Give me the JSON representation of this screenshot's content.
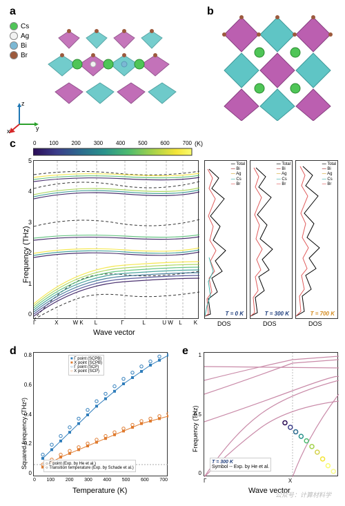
{
  "panels": {
    "a": {
      "label": "a"
    },
    "b": {
      "label": "b"
    },
    "c": {
      "label": "c"
    },
    "d": {
      "label": "d"
    },
    "e": {
      "label": "e"
    }
  },
  "atom_legend": {
    "items": [
      {
        "name": "Cs",
        "color": "#4fc557"
      },
      {
        "name": "Ag",
        "color": "#f2f2f2"
      },
      {
        "name": "Bi",
        "color": "#7bb8d4"
      },
      {
        "name": "Br",
        "color": "#9c5a3d"
      }
    ]
  },
  "axes_3d": {
    "x": "x",
    "y": "y",
    "z": "z",
    "x_color": "#d62728",
    "y_color": "#2ca02c",
    "z_color": "#1f77b4"
  },
  "colorbar": {
    "title": "(K)",
    "ticks": [
      0,
      100,
      200,
      300,
      400,
      500,
      600,
      700
    ],
    "gradient": [
      "#2b0d57",
      "#3b3d8a",
      "#2c6b8f",
      "#2a938c",
      "#4dbb6f",
      "#a3d24b",
      "#f3e438",
      "#f9fb6e"
    ]
  },
  "panel_c": {
    "ylabel": "Frequency (THz)",
    "xlabel": "Wave vector",
    "ylim": [
      0,
      5.5
    ],
    "yticks": [
      0,
      1,
      2,
      3,
      4,
      5
    ],
    "hsp": [
      "Γ",
      "X",
      "W K",
      "L",
      "Γ",
      "L",
      "U W",
      "L",
      "K"
    ],
    "hsp_pos": [
      0,
      0.14,
      0.26,
      0.38,
      0.55,
      0.68,
      0.8,
      0.9,
      1.0
    ]
  },
  "dos": {
    "xlabel": "DOS",
    "series": [
      {
        "name": "Total",
        "color": "#000000"
      },
      {
        "name": "Bi",
        "color": "#a82e2e"
      },
      {
        "name": "Ag",
        "color": "#d4a938"
      },
      {
        "name": "Cs",
        "color": "#3db0a8"
      },
      {
        "name": "Br",
        "color": "#e05b5b"
      }
    ],
    "temps": [
      {
        "label": "T = 0 K",
        "color": "#1a3a7a"
      },
      {
        "label": "T = 300 K",
        "color": "#1a3a7a"
      },
      {
        "label": "T = 700 K",
        "color": "#d48b1f"
      }
    ]
  },
  "panel_d": {
    "ylabel": "Squared frequency (THz²)",
    "xlabel": "Temperature (K)",
    "xlim": [
      0,
      750
    ],
    "xticks": [
      0,
      100,
      200,
      300,
      400,
      500,
      600,
      700
    ],
    "ylim": [
      -0.1,
      0.9
    ],
    "yticks": [
      0.0,
      0.2,
      0.4,
      0.6,
      0.8
    ],
    "series": [
      {
        "name": "Γ point (SCPB)",
        "color": "#2f7dbb",
        "marker": "square-filled"
      },
      {
        "name": "X point (SCPB)",
        "color": "#e07b2f",
        "marker": "square-filled"
      },
      {
        "name": "Γ point (SCP)",
        "color": "#2f7dbb",
        "marker": "circle-open"
      },
      {
        "name": "X point (SCP)",
        "color": "#e07b2f",
        "marker": "circle-open"
      }
    ],
    "exp_legend": [
      "Γ point (Exp. by He et al.)",
      "Transition temperature (Exp. by Schade et al.)"
    ],
    "data_gamma_scpb": {
      "x": [
        50,
        100,
        150,
        200,
        250,
        300,
        350,
        400,
        450,
        500,
        550,
        600,
        650,
        700,
        750
      ],
      "y": [
        0.05,
        0.12,
        0.19,
        0.26,
        0.33,
        0.4,
        0.47,
        0.53,
        0.59,
        0.65,
        0.7,
        0.75,
        0.8,
        0.84,
        0.88
      ]
    },
    "data_x_scpb": {
      "x": [
        50,
        100,
        150,
        200,
        250,
        300,
        350,
        400,
        450,
        500,
        550,
        600,
        650,
        700,
        750
      ],
      "y": [
        -0.02,
        0.02,
        0.06,
        0.09,
        0.12,
        0.15,
        0.18,
        0.21,
        0.24,
        0.27,
        0.3,
        0.33,
        0.35,
        0.37,
        0.39
      ]
    },
    "data_gamma_scp": {
      "x": [
        50,
        100,
        150,
        200,
        250,
        300,
        350,
        400,
        450,
        500,
        550,
        600,
        650,
        700,
        750
      ],
      "y": [
        0.08,
        0.16,
        0.23,
        0.3,
        0.37,
        0.44,
        0.51,
        0.57,
        0.63,
        0.69,
        0.74,
        0.79,
        0.83,
        0.87,
        0.91
      ]
    },
    "data_x_scp": {
      "x": [
        50,
        100,
        150,
        200,
        250,
        300,
        350,
        400,
        450,
        500,
        550,
        600,
        650,
        700,
        750
      ],
      "y": [
        0.0,
        0.04,
        0.08,
        0.11,
        0.14,
        0.17,
        0.2,
        0.23,
        0.26,
        0.29,
        0.32,
        0.35,
        0.37,
        0.39,
        0.41
      ]
    }
  },
  "panel_e": {
    "ylabel": "Frequency (THz)",
    "xlabel": "Wave vector",
    "ylim": [
      0,
      1.1
    ],
    "yticks": [
      0.0,
      0.5,
      1.0
    ],
    "hsp": [
      "Γ",
      "X"
    ],
    "temp_label": "T = 300 K",
    "temp_color": "#1a3a7a",
    "exp_label": "Symbol -- Exp. by He et al.",
    "line_color": "#c98aa8",
    "exp_points": {
      "x": [
        0.6,
        0.64,
        0.68,
        0.72,
        0.76,
        0.8,
        0.84,
        0.88,
        0.92,
        0.96
      ],
      "y": [
        0.48,
        0.44,
        0.4,
        0.36,
        0.32,
        0.27,
        0.22,
        0.16,
        0.1,
        0.05
      ]
    }
  },
  "crystal": {
    "octa_colors": [
      "#bb5fb0",
      "#5fc5c5"
    ],
    "cs_color": "#4fc557",
    "br_color": "#9c5a3d"
  },
  "watermark": "公众号：计算材料学"
}
